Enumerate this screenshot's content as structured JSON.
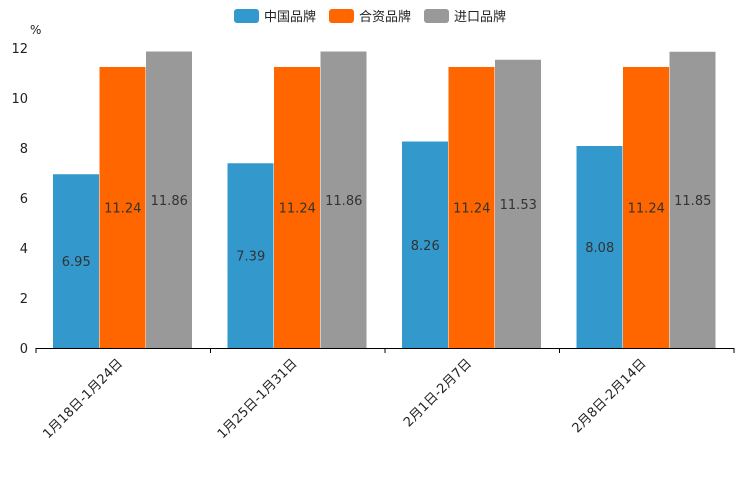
{
  "chart_data": {
    "type": "bar",
    "title": "",
    "ylabel": "%",
    "xlabel": "",
    "ylim": [
      0,
      12
    ],
    "yticks": [
      0,
      2,
      4,
      6,
      8,
      10,
      12
    ],
    "categories": [
      "1月18日-1月24日",
      "1月25日-1月31日",
      "2月1日-2月7日",
      "2月8日-2月14日"
    ],
    "series": [
      {
        "name": "中国品牌",
        "color": "#3399cc",
        "values": [
          6.95,
          7.39,
          8.26,
          8.08
        ]
      },
      {
        "name": "合资品牌",
        "color": "#ff6600",
        "values": [
          11.24,
          11.24,
          11.24,
          11.24
        ]
      },
      {
        "name": "进口品牌",
        "color": "#999999",
        "values": [
          11.86,
          11.86,
          11.53,
          11.85
        ]
      }
    ],
    "legend_position": "top-center",
    "grid": false
  }
}
